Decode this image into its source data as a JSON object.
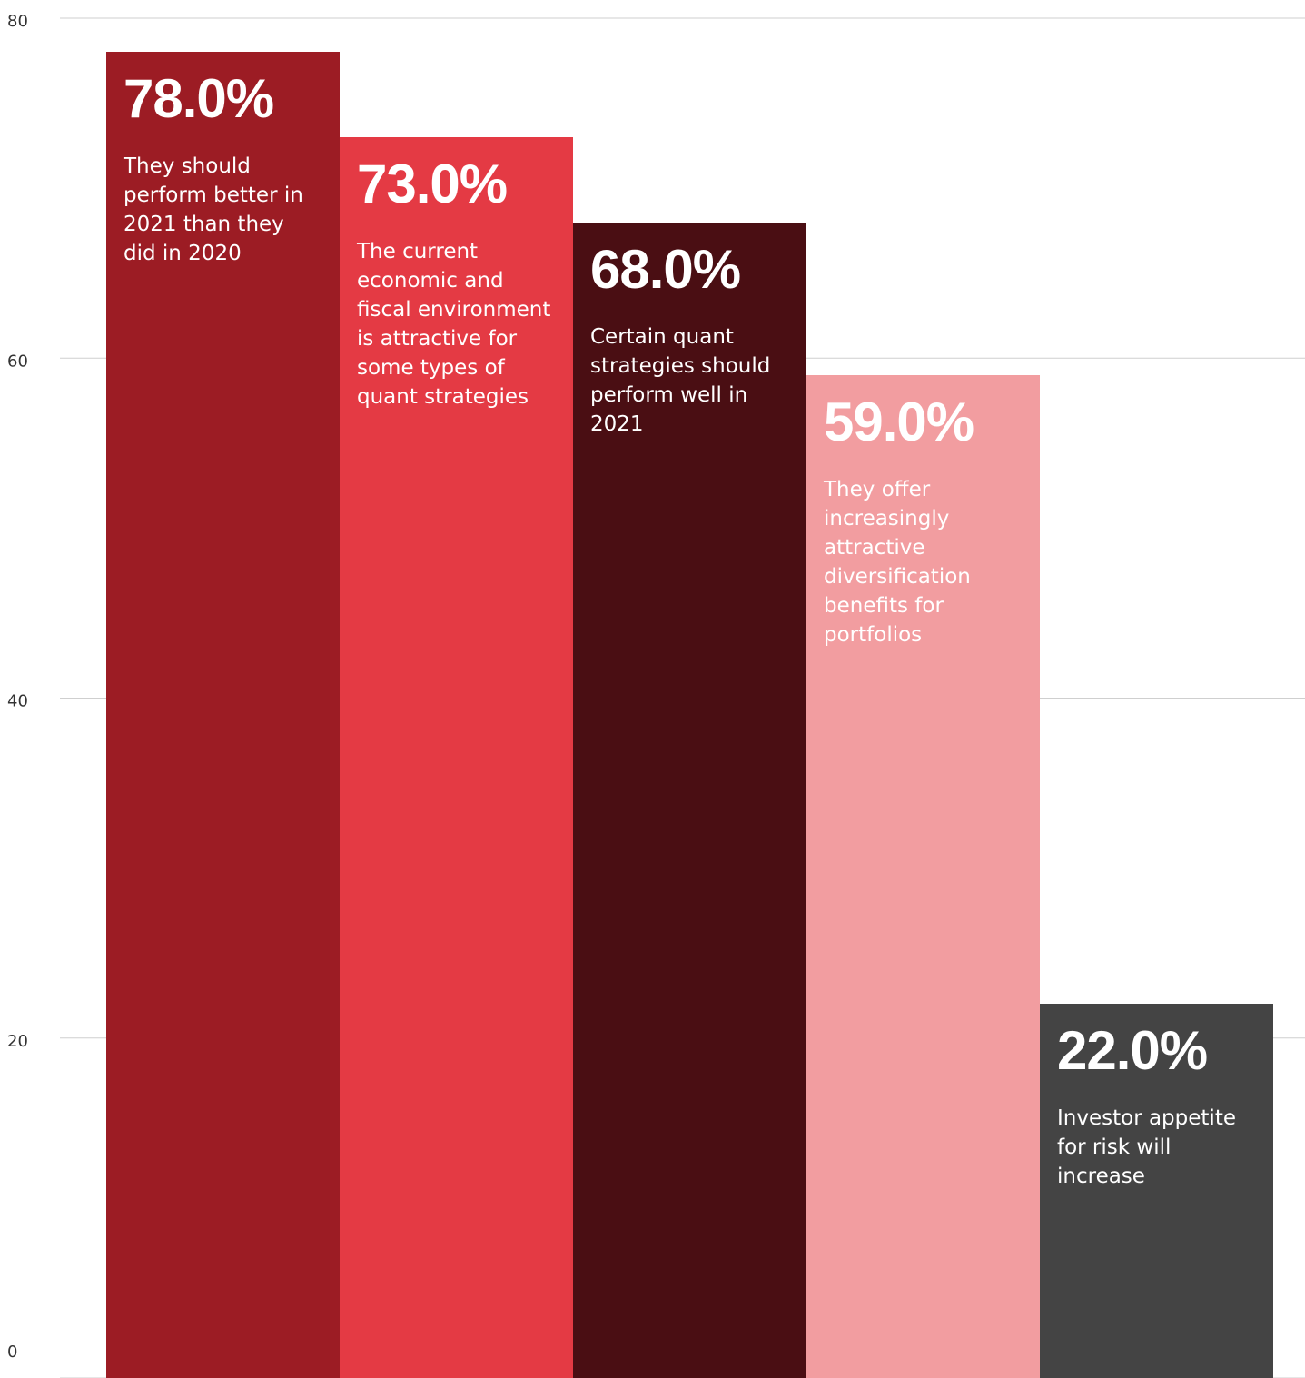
{
  "chart_data": {
    "type": "bar",
    "categories": [
      "They should perform better in 2021 than they did in 2020",
      "The current economic and fiscal environment is attractive for some types of quant strategies",
      "Certain quant strategies should perform well in 2021",
      "They offer increasingly attractive diversification benefits for portfolios",
      "Investor appetite for risk will increase"
    ],
    "values": [
      78.0,
      73.0,
      68.0,
      59.0,
      22.0
    ],
    "value_labels": [
      "78.0%",
      "73.0%",
      "68.0%",
      "59.0%",
      "22.0%"
    ],
    "colors": [
      "#9c1c24",
      "#e43a44",
      "#4a0e13",
      "#f29da0",
      "#444444"
    ],
    "ylim": [
      0,
      80
    ],
    "yticks": [
      0,
      20,
      40,
      60,
      80
    ],
    "grid": true
  }
}
